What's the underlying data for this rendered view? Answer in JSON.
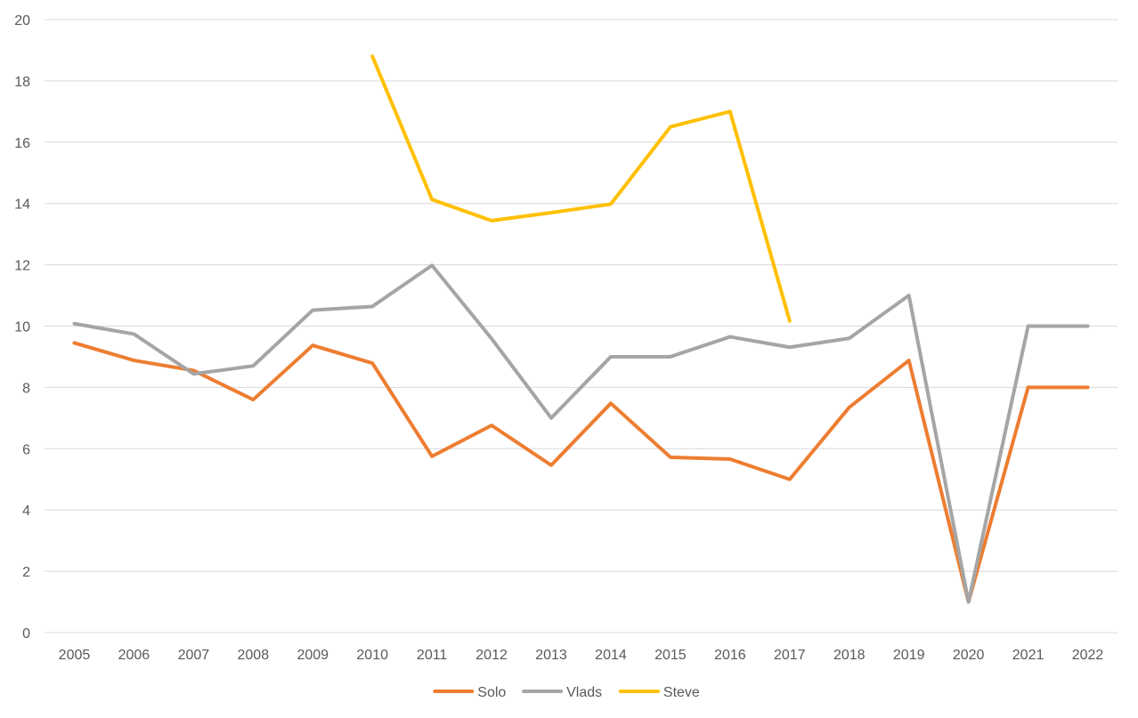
{
  "chart_data": {
    "type": "line",
    "title": "",
    "xlabel": "",
    "ylabel": "",
    "ylim": [
      0,
      20
    ],
    "y_ticks": [
      0,
      2,
      4,
      6,
      8,
      10,
      12,
      14,
      16,
      18,
      20
    ],
    "grid": true,
    "legend_position": "bottom",
    "categories": [
      "2005",
      "2006",
      "2007",
      "2008",
      "2009",
      "2010",
      "2011",
      "2012",
      "2013",
      "2014",
      "2015",
      "2016",
      "2017",
      "2018",
      "2019",
      "2020",
      "2021",
      "2022"
    ],
    "series": [
      {
        "name": "Solo",
        "color": "#ed7d31",
        "values": [
          9.45,
          8.88,
          8.55,
          7.6,
          9.37,
          8.79,
          5.75,
          6.76,
          5.46,
          7.48,
          5.72,
          5.66,
          5.0,
          7.35,
          8.88,
          1.0,
          8.0,
          8.0
        ]
      },
      {
        "name": "Vlads",
        "color": "#a5a5a5",
        "values": [
          10.08,
          9.74,
          8.44,
          8.7,
          10.52,
          10.64,
          11.98,
          9.59,
          7.0,
          9.0,
          9.0,
          9.65,
          9.31,
          9.6,
          11.0,
          1.0,
          10.0,
          10.0
        ]
      },
      {
        "name": "Steve",
        "color": "#ffc000",
        "values": [
          null,
          null,
          null,
          null,
          null,
          18.8,
          14.13,
          13.44,
          13.7,
          13.98,
          16.5,
          17.0,
          10.17,
          null,
          null,
          null,
          null,
          null
        ]
      }
    ]
  }
}
